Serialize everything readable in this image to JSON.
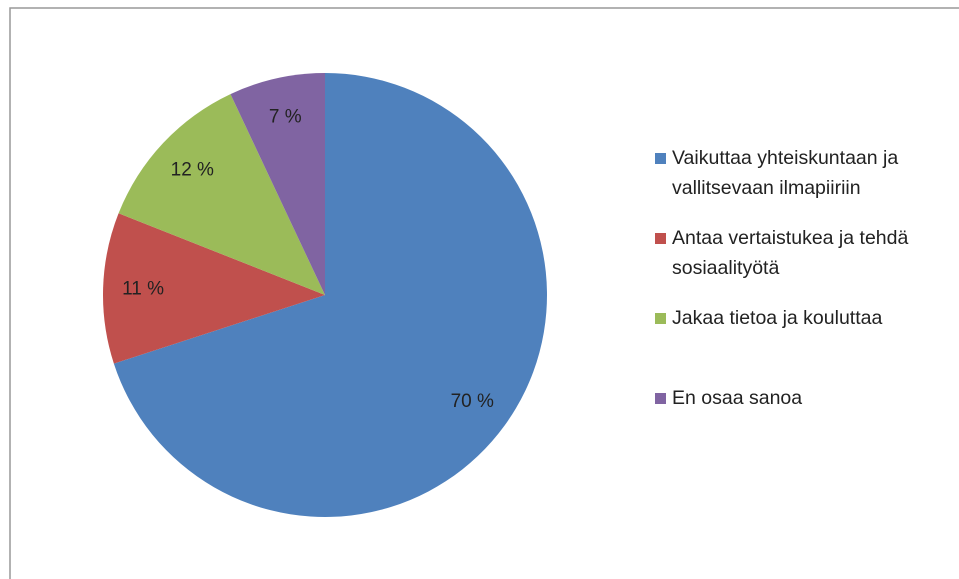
{
  "chart_data": {
    "type": "pie",
    "categories": [
      "Vaikuttaa yhteiskuntaan ja vallitsevaan ilmapiiriin",
      "Antaa vertaistukea ja tehdä sosiaalityötä",
      "Jakaa tietoa ja kouluttaa",
      "En osaa sanoa"
    ],
    "values": [
      70,
      11,
      12,
      7
    ],
    "value_labels": [
      "70 %",
      "11 %",
      "12 %",
      "7 %"
    ],
    "colors": [
      "#4f81bd",
      "#c0504d",
      "#9bbb59",
      "#8064a2"
    ],
    "legend": "right"
  }
}
